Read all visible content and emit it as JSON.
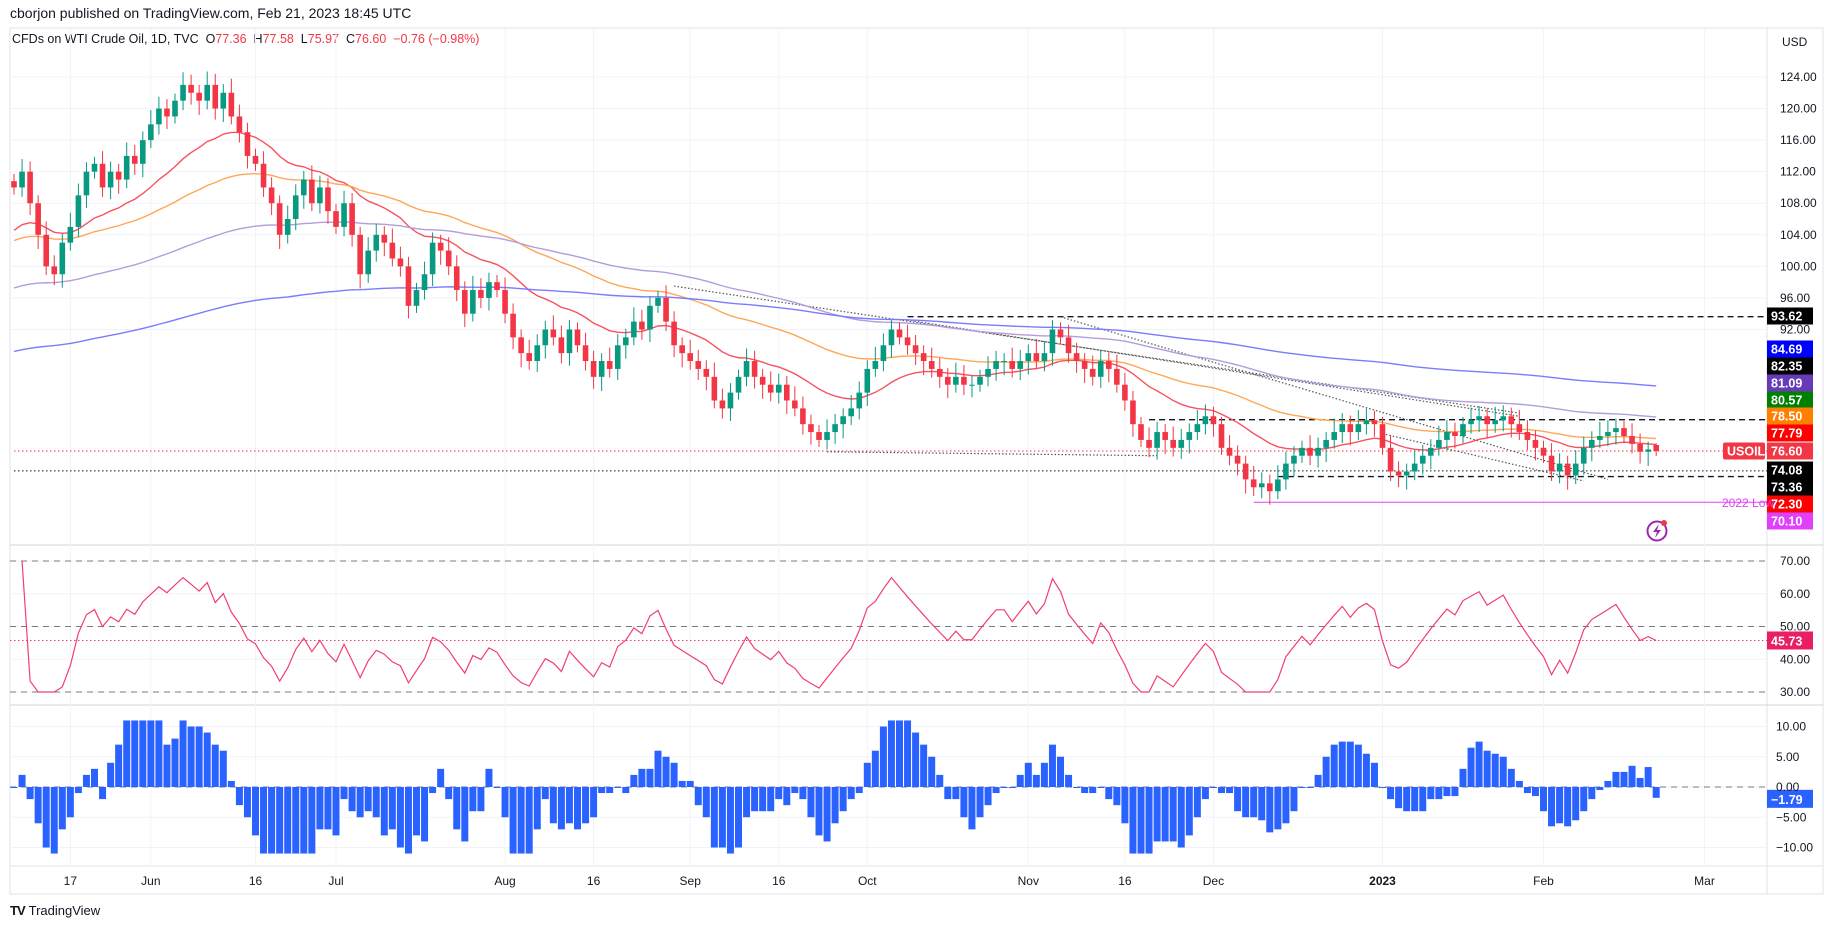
{
  "header": {
    "published": "cborjon published on TradingView.com, Feb 21, 2023 18:45 UTC"
  },
  "legend": {
    "symbol": "CFDs on WTI Crude Oil, 1D, TVC",
    "o_label": "O",
    "o": "77.36",
    "h_label": "H",
    "h": "77.58",
    "l_label": "L",
    "l": "75.97",
    "c_label": "C",
    "c": "76.60",
    "change": "−0.76 (−0.98%)"
  },
  "logo": {
    "text": "TradingView"
  },
  "colors": {
    "up": "#089981",
    "down": "#f23645",
    "rsi": "#f23f6e",
    "hist": "#2962ff",
    "grid": "#f0f3fa"
  },
  "chart_data": {
    "type": "candlestick",
    "title": "CFDs on WTI Crude Oil, 1D, TVC",
    "currency": "USD",
    "last_bar": {
      "open": 77.36,
      "high": 77.58,
      "low": 75.97,
      "close": 76.6
    },
    "closes": [
      110,
      112,
      108,
      104,
      100,
      99,
      103,
      105,
      109,
      112,
      113,
      110,
      112,
      111,
      114,
      113,
      116,
      118,
      120,
      119,
      121,
      123,
      122,
      121,
      123,
      120,
      122,
      119,
      117,
      114,
      113,
      110,
      108,
      104,
      106,
      109,
      111,
      108,
      110,
      107,
      105,
      108,
      104,
      99,
      102,
      104,
      103,
      101,
      100,
      95,
      97,
      99,
      103,
      102,
      100,
      97,
      94,
      97,
      96,
      98,
      97,
      94,
      91,
      89,
      88,
      90,
      92,
      91,
      89,
      92,
      90,
      88,
      86,
      88,
      87,
      90,
      91,
      93,
      92,
      95,
      96,
      93,
      90,
      89,
      88,
      87,
      86,
      83,
      82,
      84,
      86,
      88,
      86,
      85,
      84,
      85,
      83,
      82,
      80,
      79,
      78,
      79,
      80,
      81,
      82,
      84,
      87,
      88,
      90,
      92,
      91,
      90,
      89,
      88,
      87,
      86,
      85,
      86,
      85,
      85,
      86,
      87,
      88,
      88,
      87,
      88,
      89,
      88,
      89,
      92,
      91,
      89,
      88,
      87,
      86,
      88,
      87,
      85,
      83,
      80,
      78,
      77,
      79,
      78,
      77,
      78,
      79,
      80,
      81,
      80,
      77,
      76,
      75,
      73,
      72,
      72.5,
      71.5,
      73,
      75,
      76,
      77,
      76,
      77,
      78,
      79,
      80,
      79,
      80,
      80.5,
      80,
      77,
      74,
      73.5,
      74,
      75,
      76,
      77,
      78,
      79,
      78.5,
      80,
      80.5,
      81,
      80,
      80.5,
      81,
      80,
      79,
      78,
      77,
      76,
      74,
      75,
      73.5,
      75,
      77,
      78,
      78.5,
      79,
      79.5,
      78.5,
      77.5,
      76.5,
      76.8,
      76.6
    ],
    "moving_averages": [
      {
        "name": "EMA 20",
        "period": 20,
        "seed": 104,
        "color": "#f7525f"
      },
      {
        "name": "EMA 50",
        "period": 50,
        "seed": 103,
        "color": "#ffa756"
      },
      {
        "name": "EMA 100",
        "period": 100,
        "seed": 97,
        "color": "#b39ddb"
      },
      {
        "name": "EMA 200",
        "period": 200,
        "seed": 89,
        "color": "#7b7bff"
      }
    ],
    "price_ticks": [
      "124.00",
      "120.00",
      "116.00",
      "112.00",
      "108.00",
      "104.00",
      "100.00",
      "96.00",
      "92.00"
    ],
    "price_tick_values": [
      124,
      120,
      116,
      112,
      108,
      104,
      100,
      96,
      92
    ],
    "x_labels": [
      {
        "label": "17",
        "bar": 7
      },
      {
        "label": "Jun",
        "bar": 17
      },
      {
        "label": "16",
        "bar": 30
      },
      {
        "label": "Jul",
        "bar": 40
      },
      {
        "label": "Aug",
        "bar": 61
      },
      {
        "label": "16",
        "bar": 72
      },
      {
        "label": "Sep",
        "bar": 84
      },
      {
        "label": "16",
        "bar": 95
      },
      {
        "label": "Oct",
        "bar": 106
      },
      {
        "label": "Nov",
        "bar": 126
      },
      {
        "label": "16",
        "bar": 138
      },
      {
        "label": "Dec",
        "bar": 149
      },
      {
        "label": "2023",
        "bar": 170
      },
      {
        "label": "Feb",
        "bar": 190
      },
      {
        "label": "Mar",
        "bar": 210
      }
    ],
    "levels": [
      {
        "price": 93.62,
        "from_bar": 111,
        "style": "dashed",
        "color": "#131722"
      },
      {
        "price": 80.57,
        "from_bar": 141,
        "style": "dashed",
        "color": "#131722"
      },
      {
        "price": 74.08,
        "from_bar": 0,
        "style": "dotted",
        "color": "#131722"
      },
      {
        "price": 73.36,
        "from_bar": 157,
        "style": "dashed",
        "color": "#131722"
      },
      {
        "price": 70.1,
        "from_bar": 154,
        "style": "solid",
        "color": "#e040fb"
      },
      {
        "price": 76.6,
        "from_bar": 0,
        "style": "dotted",
        "color": "#f23645"
      }
    ],
    "trendlines": [
      {
        "bar1": 82,
        "p1": 97.5,
        "bar2": 187,
        "p2": 81.4
      },
      {
        "bar1": 111,
        "p1": 93.2,
        "bar2": 187,
        "p2": 81.0
      },
      {
        "bar1": 130,
        "p1": 93.6,
        "bar2": 198,
        "p2": 73.0
      },
      {
        "bar1": 101,
        "p1": 76.5,
        "bar2": 142,
        "p2": 76.0
      },
      {
        "bar1": 170,
        "p1": 78.8,
        "bar2": 195,
        "p2": 72.8
      }
    ],
    "annotation": {
      "text": "2022 Low",
      "price": 70.1
    },
    "price_labels": [
      {
        "value": "93.62",
        "bg": "#000000"
      },
      {
        "value": "84.69",
        "bg": "#0000ff"
      },
      {
        "value": "82.35",
        "bg": "#000000"
      },
      {
        "value": "81.09",
        "bg": "#673ab7"
      },
      {
        "value": "80.57",
        "bg": "#008000"
      },
      {
        "value": "78.50",
        "bg": "#ff7f00"
      },
      {
        "value": "77.79",
        "bg": "#ff0000"
      },
      {
        "value": "76.60",
        "bg": "#f23645",
        "tag": "USOIL"
      },
      {
        "value": "74.08",
        "bg": "#000000"
      },
      {
        "value": "73.36",
        "bg": "#000000"
      },
      {
        "value": "72.30",
        "bg": "#ff0000"
      },
      {
        "value": "70.10",
        "bg": "#e040fb"
      }
    ],
    "rsi": {
      "period": 14,
      "ticks": [
        "70.00",
        "60.00",
        "50.00",
        "40.00",
        "30.00"
      ],
      "tick_values": [
        70,
        60,
        50,
        40,
        30
      ],
      "bands": [
        70,
        50,
        30
      ],
      "last_label": "45.73",
      "last_value": 45.73,
      "ylim": [
        30,
        70
      ]
    },
    "histogram": {
      "lookback": 10,
      "ticks": [
        "10.00",
        "5.00",
        "0.00",
        "−5.00",
        "−10.00"
      ],
      "tick_values": [
        10,
        5,
        0,
        -5,
        -10
      ],
      "last_label": "−1.79",
      "last_value": -1.79,
      "ylim": [
        -10,
        10
      ]
    }
  }
}
